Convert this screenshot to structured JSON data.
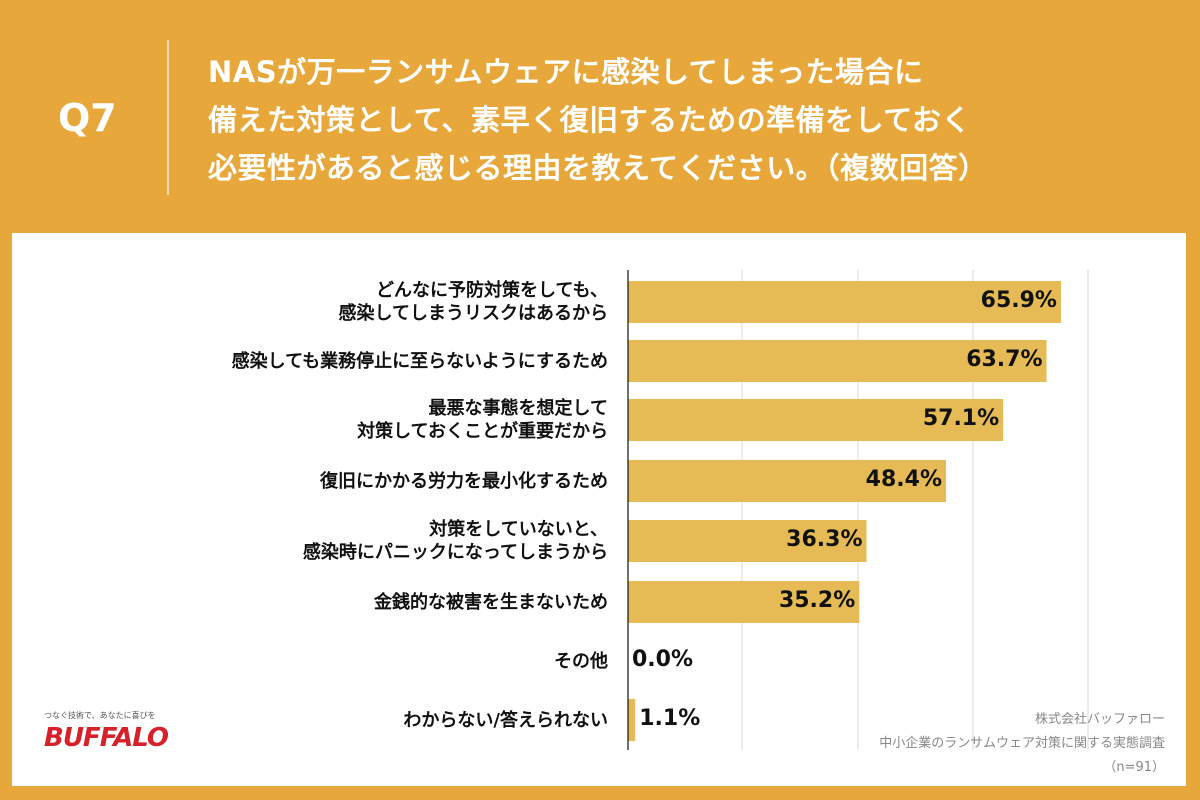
{
  "header": {
    "question": "Q7",
    "title_lines": [
      "NASが万一ランサムウェアに感染してしまった場合に",
      "備えた対策として、素早く復旧するための準備をしておく",
      "必要性があると感じる理由を教えてください。（複数回答）"
    ]
  },
  "chart_data": {
    "type": "bar",
    "orientation": "horizontal",
    "categories": [
      "どんなに予防対策をしても、\n感染してしまうリスクはあるから",
      "感染しても業務停止に至らないようにするため",
      "最悪な事態を想定して\n対策しておくことが重要だから",
      "復旧にかかる労力を最小化するため",
      "対策をしていないと、\n感染時にパニックになってしまうから",
      "金銭的な被害を生まないため",
      "その他",
      "わからない/答えられない"
    ],
    "values": [
      65.9,
      63.7,
      57.1,
      48.4,
      36.3,
      35.2,
      0.0,
      1.1
    ],
    "data_labels": [
      "65.9%",
      "63.7%",
      "57.1%",
      "48.4%",
      "36.3%",
      "35.2%",
      "0.0%",
      "1.1%"
    ],
    "grid": true,
    "bar_color": "#E6BB55"
  },
  "logo": {
    "tagline": "つなぐ技術で、あなたに喜びを",
    "brand": "BUFFALO"
  },
  "source": [
    "株式会社バッファロー",
    "中小企業のランサムウェア対策に関する実態調査",
    "（n=91）"
  ]
}
